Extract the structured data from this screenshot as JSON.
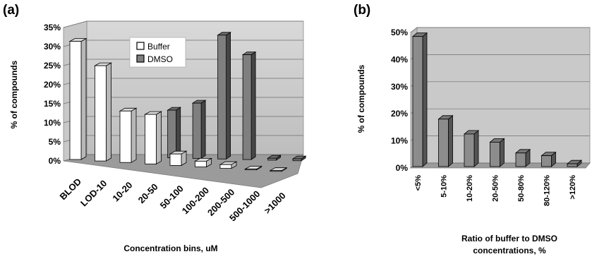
{
  "chart_data": [
    {
      "panel": "(a)",
      "type": "bar",
      "xlabel": "Concentration bins, uM",
      "ylabel": "% of compounds",
      "ylim": [
        0,
        35
      ],
      "yticks": [
        "0%",
        "5%",
        "10%",
        "15%",
        "20%",
        "25%",
        "30%",
        "35%"
      ],
      "categories": [
        "BLOD",
        "LOD-10",
        "10-20",
        "20-50",
        "50-100",
        "100-200",
        "200-500",
        "500-1000",
        ">1000"
      ],
      "series": [
        {
          "name": "Buffer",
          "color": "#ffffff",
          "values": [
            31,
            25,
            13.5,
            13,
            3,
            1.5,
            1,
            0.2,
            0.2
          ]
        },
        {
          "name": "DMSO",
          "color": "#7f7f7f",
          "values": [
            0,
            0,
            0,
            12.5,
            14.5,
            32.5,
            27.5,
            0.5,
            0.5
          ]
        }
      ],
      "legend_position": "top-center",
      "grid": true
    },
    {
      "panel": "(b)",
      "type": "bar",
      "xlabel": "Ratio of buffer to DMSO concentrations, %",
      "ylabel": "% of compounds",
      "ylim": [
        0,
        50
      ],
      "yticks": [
        "0%",
        "10%",
        "20%",
        "30%",
        "40%",
        "50%"
      ],
      "categories": [
        "<5%",
        "5-10%",
        "10-20%",
        "20-50%",
        "50-80%",
        "80-120%",
        ">120%"
      ],
      "series": [
        {
          "color": "#8c8c8c",
          "values": [
            48,
            17.5,
            12,
            9,
            5,
            4,
            1
          ]
        }
      ],
      "grid": true
    }
  ]
}
